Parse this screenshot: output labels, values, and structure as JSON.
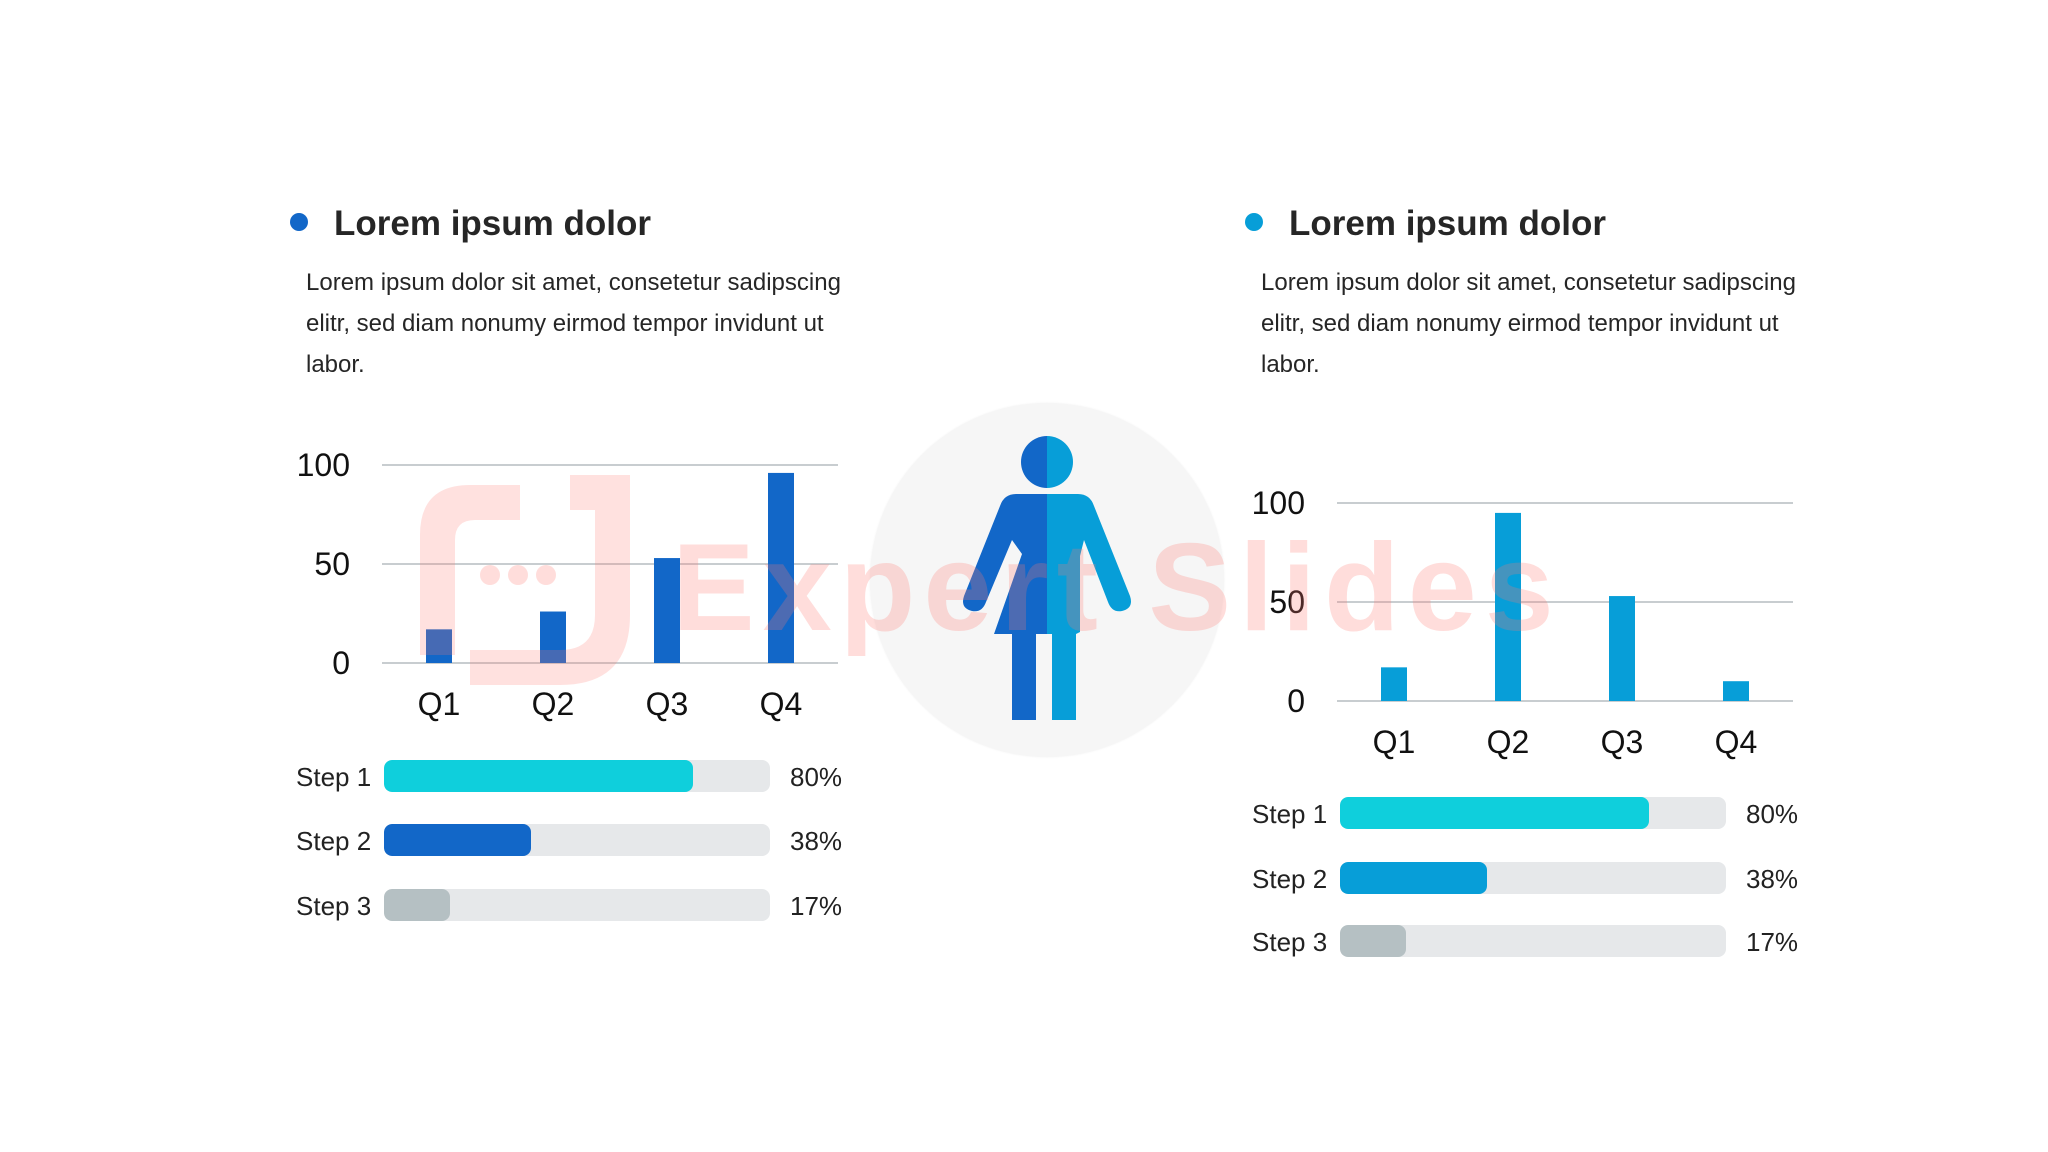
{
  "colors": {
    "dark_blue": "#1267c8",
    "light_blue": "#079ed8",
    "cyan": "#0fcfdc",
    "grey": "#b5c0c3",
    "track": "#e6e8ea",
    "grid": "#c8cdd0"
  },
  "panels": [
    {
      "title": "Lorem ipsum dolor",
      "description": "Lorem ipsum dolor sit amet, consetetur sadipscing elitr, sed diam nonumy eirmod tempor invidunt ut labor.",
      "accent": "#1267c8",
      "steps": [
        {
          "label": "Step 1",
          "value": 80,
          "text": "80%",
          "color": "#0fcfdc"
        },
        {
          "label": "Step 2",
          "value": 38,
          "text": "38%",
          "color": "#1267c8"
        },
        {
          "label": "Step 3",
          "value": 17,
          "text": "17%",
          "color": "#b5c0c3"
        }
      ]
    },
    {
      "title": "Lorem ipsum dolor",
      "description": "Lorem ipsum dolor sit amet, consetetur sadipscing elitr, sed diam nonumy eirmod tempor invidunt ut labor.",
      "accent": "#079ed8",
      "steps": [
        {
          "label": "Step 1",
          "value": 80,
          "text": "80%",
          "color": "#0fcfdc"
        },
        {
          "label": "Step 2",
          "value": 38,
          "text": "38%",
          "color": "#079ed8"
        },
        {
          "label": "Step 3",
          "value": 17,
          "text": "17%",
          "color": "#b5c0c3"
        }
      ]
    }
  ],
  "chart_data": [
    {
      "type": "bar",
      "categories": [
        "Q1",
        "Q2",
        "Q3",
        "Q4"
      ],
      "values": [
        17,
        26,
        53,
        96
      ],
      "ylim": [
        0,
        100
      ],
      "yticks": [
        "0",
        "50",
        "100"
      ],
      "grid": true,
      "color": "#1267c8"
    },
    {
      "type": "bar",
      "categories": [
        "Q1",
        "Q2",
        "Q3",
        "Q4"
      ],
      "values": [
        17,
        95,
        53,
        10
      ],
      "ylim": [
        0,
        100
      ],
      "yticks": [
        "0",
        "50",
        "100"
      ],
      "grid": true,
      "color": "#079ed8"
    }
  ],
  "watermark": {
    "text": "Expert Slides"
  },
  "center_icon": "person-icon"
}
